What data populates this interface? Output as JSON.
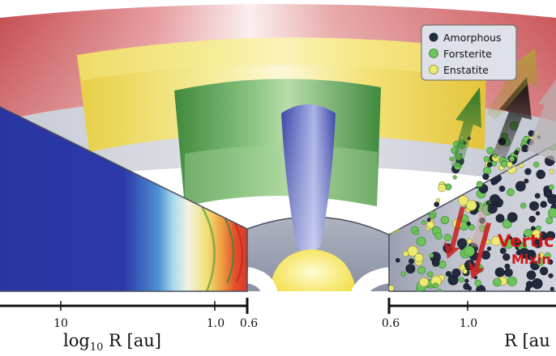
{
  "legend": {
    "items": [
      {
        "label": "Amorphous",
        "color": "#232a3e"
      },
      {
        "label": "Forsterite",
        "color": "#6cc45a"
      },
      {
        "label": "Enstatite",
        "color": "#ecea70"
      }
    ]
  },
  "annotation": {
    "line1": "Vertic",
    "line2": "Mixin"
  },
  "axis_left": {
    "ticks": [
      "10",
      "1.0",
      "0.6"
    ],
    "title_prefix": "log",
    "title_sub": "10",
    "title_suffix": " R [au]"
  },
  "axis_right": {
    "ticks": [
      "0.6",
      "1.0"
    ],
    "title": "R [au"
  },
  "colors": {
    "outer_shell": "#cf6b6b",
    "yellow_shell": "#f1de5c",
    "green_shell": "#5faa52",
    "jet": "#4654b8",
    "star": "#f4e35a",
    "disk_left": "#2a38a6",
    "disk_right": "#b4b7c4",
    "inner_rim": "#9da3b4"
  }
}
